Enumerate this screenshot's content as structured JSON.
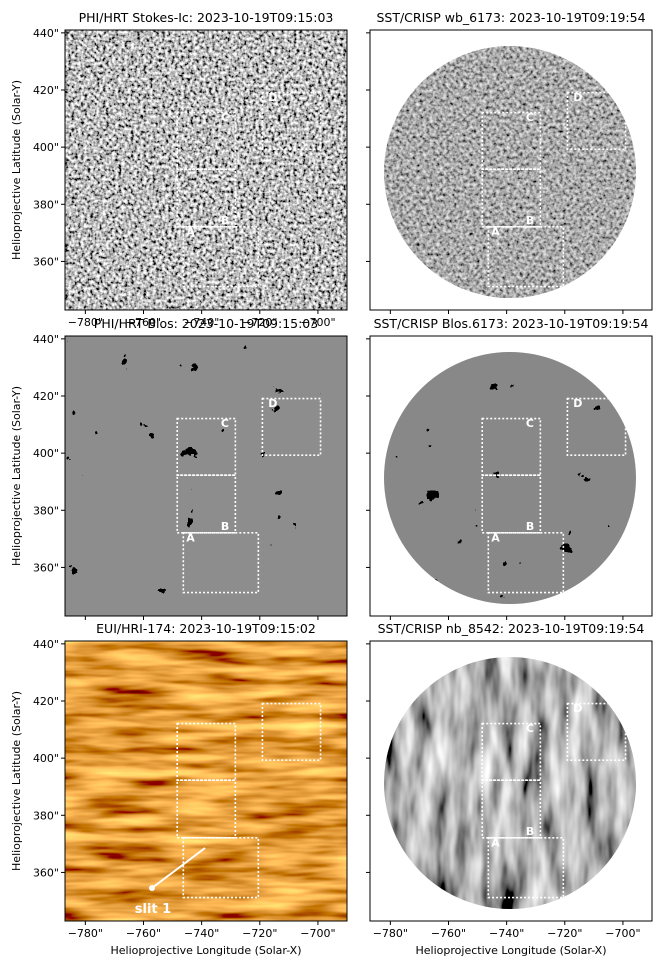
{
  "chart_data": [
    {
      "type": "image",
      "title": "PHI/HRT Stokes-Ic: 2023-10-19T09:15:03",
      "ylabel": "Helioprojective Latitude (Solar-Y)",
      "xlim": [
        -787,
        -690
      ],
      "ylim": [
        343,
        441
      ],
      "xticks": [
        {
          "value": -780,
          "label": "−780\""
        },
        {
          "value": -760,
          "label": "−760\""
        },
        {
          "value": -740,
          "label": "−740\""
        },
        {
          "value": -720,
          "label": "−720\""
        },
        {
          "value": -700,
          "label": "−700\""
        }
      ],
      "yticks": [
        {
          "value": 360,
          "label": "360\""
        },
        {
          "value": 380,
          "label": "380\""
        },
        {
          "value": 400,
          "label": "400\""
        },
        {
          "value": 420,
          "label": "420\""
        },
        {
          "value": 440,
          "label": "440\""
        }
      ],
      "regions": [
        "A",
        "B",
        "C",
        "D"
      ]
    },
    {
      "type": "image",
      "title": "SST/CRISP wb_6173: 2023-10-19T09:19:54",
      "xlim": [
        -787,
        -690
      ],
      "ylim": [
        343,
        441
      ],
      "xticks": [
        -780,
        -760,
        -740,
        -720,
        -700
      ],
      "yticks": [
        360,
        380,
        400,
        420,
        440
      ],
      "regions": [
        "A",
        "B",
        "C",
        "D"
      ]
    },
    {
      "type": "image",
      "title": "PHI/HRT Blos: 2023-10-19T09:15:03",
      "ylabel": "Helioprojective Latitude (Solar-Y)",
      "xlim": [
        -787,
        -690
      ],
      "ylim": [
        343,
        441
      ],
      "xticks": [
        -780,
        -760,
        -740,
        -720,
        -700
      ],
      "yticks": [
        {
          "value": 360,
          "label": "360\""
        },
        {
          "value": 380,
          "label": "380\""
        },
        {
          "value": 400,
          "label": "400\""
        },
        {
          "value": 420,
          "label": "420\""
        },
        {
          "value": 440,
          "label": "440\""
        }
      ],
      "regions": [
        "A",
        "B",
        "C",
        "D"
      ]
    },
    {
      "type": "image",
      "title": "SST/CRISP Blos.6173: 2023-10-19T09:19:54",
      "xlim": [
        -787,
        -690
      ],
      "ylim": [
        343,
        441
      ],
      "xticks": [
        -780,
        -760,
        -740,
        -720,
        -700
      ],
      "yticks": [
        360,
        380,
        400,
        420,
        440
      ],
      "regions": [
        "A",
        "B",
        "C",
        "D"
      ]
    },
    {
      "type": "image",
      "title": "EUI/HRI-174: 2023-10-19T09:15:02",
      "ylabel": "Helioprojective Latitude (Solar-Y)",
      "xlabel": "Helioprojective Longitude (Solar-X)",
      "xlim": [
        -787,
        -690
      ],
      "ylim": [
        343,
        441
      ],
      "xticks": [
        {
          "value": -780,
          "label": "−780\""
        },
        {
          "value": -760,
          "label": "−760\""
        },
        {
          "value": -740,
          "label": "−740\""
        },
        {
          "value": -720,
          "label": "−720\""
        },
        {
          "value": -700,
          "label": "−700\""
        }
      ],
      "yticks": [
        {
          "value": 360,
          "label": "360\""
        },
        {
          "value": 380,
          "label": "380\""
        },
        {
          "value": 400,
          "label": "400\""
        },
        {
          "value": 420,
          "label": "420\""
        },
        {
          "value": 440,
          "label": "440\""
        }
      ],
      "annotation": "slit 1"
    },
    {
      "type": "image",
      "title": "SST/CRISP nb_8542: 2023-10-19T09:19:54",
      "xlabel": "Helioprojective Longitude (Solar-X)",
      "xlim": [
        -787,
        -690
      ],
      "ylim": [
        343,
        441
      ],
      "xticks": [
        {
          "value": -780,
          "label": "−780\""
        },
        {
          "value": -760,
          "label": "−760\""
        },
        {
          "value": -740,
          "label": "−740\""
        },
        {
          "value": -720,
          "label": "−720\""
        },
        {
          "value": -700,
          "label": "−700\""
        }
      ],
      "yticks": [
        360,
        380,
        400,
        420,
        440
      ],
      "regions": [
        "A",
        "B",
        "C",
        "D"
      ]
    }
  ]
}
